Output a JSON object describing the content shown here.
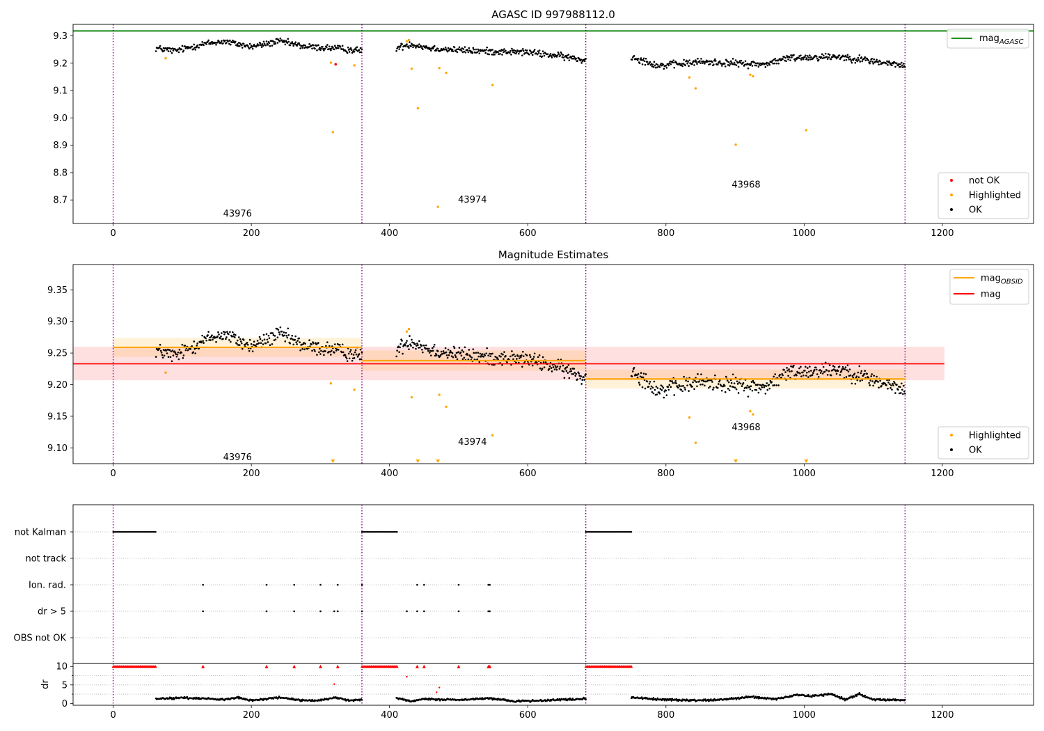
{
  "chart_data": [
    {
      "type": "scatter",
      "title": "AGASC ID 997988112.0",
      "xlabel": "",
      "ylabel": "",
      "xlim": [
        -58,
        1332
      ],
      "ylim": [
        8.614,
        9.342
      ],
      "xticks": [
        0,
        200,
        400,
        600,
        800,
        1000,
        1200
      ],
      "yticks": [
        8.7,
        8.8,
        8.9,
        9.0,
        9.1,
        9.2,
        9.3
      ],
      "obsid_boundaries": [
        0,
        360,
        684,
        1146
      ],
      "obsid_labels": [
        {
          "text": "43976",
          "x": 180,
          "y": 8.65
        },
        {
          "text": "43974",
          "x": 520,
          "y": 8.7
        },
        {
          "text": "43968",
          "x": 916,
          "y": 8.755
        }
      ],
      "lines": [
        {
          "name": "mag_AGASC",
          "color": "#008000",
          "y": 9.318
        }
      ],
      "legend_lines": [
        {
          "label": "mag",
          "sub": "AGASC",
          "color": "#008000"
        }
      ],
      "legend_markers": [
        {
          "label": "not OK",
          "color": "#ff0000"
        },
        {
          "label": "Highlighted",
          "color": "#ffa500"
        },
        {
          "label": "OK",
          "color": "#000000"
        }
      ],
      "ok_segments": [
        {
          "x0": 62,
          "x1": 360,
          "knots": [
            [
              62,
              9.255
            ],
            [
              90,
              9.245
            ],
            [
              130,
              9.27
            ],
            [
              160,
              9.28
            ],
            [
              200,
              9.26
            ],
            [
              240,
              9.28
            ],
            [
              280,
              9.26
            ],
            [
              320,
              9.255
            ],
            [
              360,
              9.245
            ]
          ],
          "noise": 0.012
        },
        {
          "x0": 410,
          "x1": 684,
          "knots": [
            [
              410,
              9.255
            ],
            [
              430,
              9.27
            ],
            [
              460,
              9.255
            ],
            [
              520,
              9.245
            ],
            [
              600,
              9.24
            ],
            [
              650,
              9.225
            ],
            [
              684,
              9.21
            ]
          ],
          "noise": 0.012
        },
        {
          "x0": 750,
          "x1": 1146,
          "knots": [
            [
              750,
              9.225
            ],
            [
              790,
              9.19
            ],
            [
              850,
              9.205
            ],
            [
              900,
              9.2
            ],
            [
              940,
              9.195
            ],
            [
              980,
              9.22
            ],
            [
              1050,
              9.225
            ],
            [
              1080,
              9.215
            ],
            [
              1120,
              9.2
            ],
            [
              1146,
              9.19
            ]
          ],
          "noise": 0.013
        }
      ],
      "highlighted": [
        [
          76,
          9.218
        ],
        [
          315,
          9.202
        ],
        [
          318,
          8.948
        ],
        [
          349,
          9.192
        ],
        [
          425,
          9.28
        ],
        [
          428,
          9.285
        ],
        [
          432,
          9.18
        ],
        [
          441,
          9.035
        ],
        [
          472,
          9.182
        ],
        [
          482,
          9.165
        ],
        [
          549,
          9.12
        ],
        [
          470,
          8.675
        ],
        [
          834,
          9.148
        ],
        [
          843,
          9.108
        ],
        [
          901,
          8.902
        ],
        [
          922,
          9.158
        ],
        [
          926,
          9.152
        ],
        [
          1003,
          8.955
        ]
      ],
      "not_ok": [
        [
          322,
          9.196
        ]
      ]
    },
    {
      "type": "scatter",
      "title": "Magnitude Estimates",
      "xlabel": "",
      "ylabel": "",
      "xlim": [
        -58,
        1332
      ],
      "ylim": [
        9.075,
        9.39
      ],
      "xticks": [
        0,
        200,
        400,
        600,
        800,
        1000,
        1200
      ],
      "yticks": [
        9.1,
        9.15,
        9.2,
        9.25,
        9.3,
        9.35
      ],
      "obsid_boundaries": [
        0,
        360,
        684,
        1146
      ],
      "obsid_labels": [
        {
          "text": "43976",
          "x": 180,
          "y": 9.085
        },
        {
          "text": "43974",
          "x": 520,
          "y": 9.109
        },
        {
          "text": "43968",
          "x": 916,
          "y": 9.132
        }
      ],
      "mag": {
        "x0": -58,
        "x1": 1203,
        "y": 9.233,
        "band": [
          9.207,
          9.26
        ],
        "color": "#ff0000"
      },
      "mag_obsid": [
        {
          "x0": 0,
          "x1": 360,
          "y": 9.259,
          "band": [
            9.244,
            9.274
          ]
        },
        {
          "x0": 360,
          "x1": 684,
          "y": 9.238,
          "band": [
            9.222,
            9.254
          ]
        },
        {
          "x0": 684,
          "x1": 1146,
          "y": 9.209,
          "band": [
            9.194,
            9.224
          ]
        }
      ],
      "legend_lines": [
        {
          "label": "mag",
          "sub": "OBSID",
          "color": "#ffa500"
        },
        {
          "label": "mag",
          "sub": "",
          "color": "#ff0000"
        }
      ],
      "legend_markers": [
        {
          "label": "Highlighted",
          "color": "#ffa500"
        },
        {
          "label": "OK",
          "color": "#000000"
        }
      ],
      "ok_segments": [
        {
          "x0": 62,
          "x1": 360,
          "knots": [
            [
              62,
              9.255
            ],
            [
              90,
              9.245
            ],
            [
              130,
              9.27
            ],
            [
              160,
              9.28
            ],
            [
              200,
              9.26
            ],
            [
              240,
              9.28
            ],
            [
              280,
              9.26
            ],
            [
              320,
              9.255
            ],
            [
              360,
              9.245
            ]
          ],
          "noise": 0.012
        },
        {
          "x0": 410,
          "x1": 684,
          "knots": [
            [
              410,
              9.255
            ],
            [
              430,
              9.27
            ],
            [
              460,
              9.255
            ],
            [
              520,
              9.245
            ],
            [
              600,
              9.24
            ],
            [
              650,
              9.225
            ],
            [
              684,
              9.21
            ]
          ],
          "noise": 0.012
        },
        {
          "x0": 750,
          "x1": 1146,
          "knots": [
            [
              750,
              9.225
            ],
            [
              790,
              9.19
            ],
            [
              850,
              9.205
            ],
            [
              900,
              9.2
            ],
            [
              940,
              9.195
            ],
            [
              980,
              9.22
            ],
            [
              1050,
              9.225
            ],
            [
              1080,
              9.215
            ],
            [
              1120,
              9.2
            ],
            [
              1146,
              9.19
            ]
          ],
          "noise": 0.013
        }
      ],
      "highlighted": [
        [
          76,
          9.219
        ],
        [
          315,
          9.202
        ],
        [
          349,
          9.192
        ],
        [
          425,
          9.284
        ],
        [
          428,
          9.288
        ],
        [
          432,
          9.18
        ],
        [
          472,
          9.184
        ],
        [
          482,
          9.165
        ],
        [
          549,
          9.12
        ],
        [
          834,
          9.148
        ],
        [
          843,
          9.108
        ],
        [
          922,
          9.158
        ],
        [
          926,
          9.153
        ]
      ],
      "clipped_low": [
        318,
        441,
        470,
        901,
        1003
      ]
    },
    {
      "type": "scatter",
      "title": "",
      "xlabel": "",
      "ylabel": "",
      "xlim": [
        -58,
        1332
      ],
      "flag_rows": [
        "not Kalman",
        "not track",
        "Ion. rad.",
        "dr > 5",
        "OBS not OK"
      ],
      "flags": {
        "not Kalman": [
          [
            0,
            62
          ],
          [
            360,
            412
          ],
          [
            684,
            750
          ]
        ],
        "not track": [],
        "Ion. rad.": [
          130,
          222,
          262,
          300,
          325,
          360,
          440,
          450,
          500,
          543,
          545
        ],
        "dr > 5": [
          130,
          222,
          262,
          300,
          320,
          325,
          360,
          425,
          440,
          450,
          500,
          543,
          545
        ],
        "OBS not OK": []
      }
    },
    {
      "type": "scatter",
      "title": "",
      "xlabel": "",
      "ylabel": "dr",
      "xlim": [
        -58,
        1332
      ],
      "ylim": [
        -0.5,
        10.8
      ],
      "xticks": [
        0,
        200,
        400,
        600,
        800,
        1000,
        1200
      ],
      "yticks": [
        0,
        5,
        10
      ],
      "clip_value": 10,
      "clipped_ranges": [
        [
          0,
          62
        ],
        [
          360,
          412
        ],
        [
          684,
          750
        ]
      ],
      "clipped_points": [
        130,
        222,
        262,
        300,
        325,
        440,
        450,
        500,
        543,
        545
      ],
      "red_points": [
        [
          320,
          5.2
        ],
        [
          425,
          7.2
        ],
        [
          472,
          4.3
        ],
        [
          468,
          3.0
        ]
      ],
      "ok_segments": [
        {
          "x0": 62,
          "x1": 360,
          "knots": [
            [
              62,
              1.2
            ],
            [
              100,
              1.5
            ],
            [
              140,
              1.3
            ],
            [
              160,
              1.0
            ],
            [
              180,
              1.6
            ],
            [
              200,
              0.8
            ],
            [
              240,
              1.6
            ],
            [
              280,
              0.7
            ],
            [
              300,
              0.8
            ],
            [
              320,
              1.6
            ],
            [
              345,
              0.8
            ],
            [
              360,
              1.0
            ]
          ],
          "noise": 0.25
        },
        {
          "x0": 410,
          "x1": 684,
          "knots": [
            [
              410,
              1.5
            ],
            [
              430,
              0.6
            ],
            [
              450,
              1.2
            ],
            [
              500,
              0.9
            ],
            [
              540,
              1.4
            ],
            [
              580,
              0.6
            ],
            [
              620,
              0.8
            ],
            [
              660,
              1.1
            ],
            [
              684,
              1.2
            ]
          ],
          "noise": 0.25
        },
        {
          "x0": 750,
          "x1": 1146,
          "knots": [
            [
              750,
              1.6
            ],
            [
              800,
              1.0
            ],
            [
              840,
              0.8
            ],
            [
              880,
              1.0
            ],
            [
              920,
              1.7
            ],
            [
              960,
              1.2
            ],
            [
              990,
              2.3
            ],
            [
              1010,
              2.0
            ],
            [
              1040,
              2.5
            ],
            [
              1060,
              1.0
            ],
            [
              1080,
              2.5
            ],
            [
              1100,
              1.0
            ],
            [
              1146,
              0.9
            ]
          ],
          "noise": 0.25
        }
      ]
    }
  ]
}
